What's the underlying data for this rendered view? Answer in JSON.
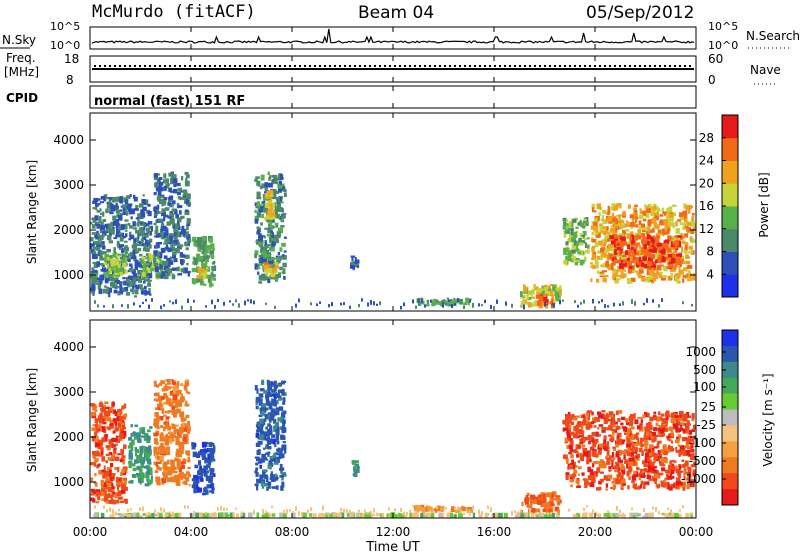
{
  "header": {
    "station": "McMurdo (fitACF)",
    "beam": "Beam 04",
    "date": "05/Sep/2012"
  },
  "noise_panel": {
    "left_label": "N.Sky",
    "left_ticks": [
      "10^5",
      "10^0"
    ],
    "right_label": "N.Search",
    "right_ticks": [
      "10^5",
      "10^0"
    ]
  },
  "freq_panel": {
    "left_label_1": "Freq.",
    "left_label_2": "[MHz]",
    "left_ticks": [
      "18",
      "8"
    ],
    "right_label": "Nave",
    "right_ticks": [
      "60",
      "0"
    ]
  },
  "cpid": {
    "label": "CPID",
    "text": "normal (fast) 151 RF"
  },
  "colors": {
    "power_scale": [
      "#1e30e8",
      "#2d4fb8",
      "#4a8a6a",
      "#58b04a",
      "#c8d33a",
      "#f0a21e",
      "#f06a1a",
      "#e61a1a"
    ],
    "velocity_scale": [
      "#1e30e8",
      "#2a55b0",
      "#3c8a8a",
      "#44a85a",
      "#66cc33",
      "#bdbdbd",
      "#f4c27a",
      "#f3a040",
      "#f07a20",
      "#f04a1a",
      "#e61a1a"
    ]
  },
  "chart_data": [
    {
      "type": "heatmap",
      "name": "power",
      "ylabel": "Slant Range [km]",
      "yticks": [
        "1000",
        "2000",
        "3000",
        "4000"
      ],
      "ylim": [
        200,
        4600
      ],
      "xlim": [
        "00:00",
        "24:00"
      ],
      "colorbar": {
        "label": "Power [dB]",
        "ticks": [
          "4",
          "8",
          "12",
          "16",
          "20",
          "24",
          "28"
        ],
        "range": [
          0,
          32
        ]
      },
      "echo_regions": [
        {
          "t0": 0.0,
          "t1": 2.5,
          "r0": 500,
          "r1": 2800,
          "v": 8
        },
        {
          "t0": 0.5,
          "t1": 1.5,
          "r0": 900,
          "r1": 1500,
          "v": 16
        },
        {
          "t0": 2.0,
          "t1": 3.0,
          "r0": 900,
          "r1": 1500,
          "v": 16
        },
        {
          "t0": 2.5,
          "t1": 4.0,
          "r0": 900,
          "r1": 3300,
          "v": 8
        },
        {
          "t0": 4.0,
          "t1": 5.0,
          "r0": 700,
          "r1": 1900,
          "v": 12
        },
        {
          "t0": 4.2,
          "t1": 4.7,
          "r0": 900,
          "r1": 1200,
          "v": 20
        },
        {
          "t0": 6.5,
          "t1": 7.8,
          "r0": 800,
          "r1": 3300,
          "v": 10
        },
        {
          "t0": 6.8,
          "t1": 7.5,
          "r0": 900,
          "r1": 1300,
          "v": 22
        },
        {
          "t0": 6.9,
          "t1": 7.4,
          "r0": 2200,
          "r1": 2900,
          "v": 20
        },
        {
          "t0": 10.3,
          "t1": 10.7,
          "r0": 1100,
          "r1": 1500,
          "v": 6
        },
        {
          "t0": 12.8,
          "t1": 15.2,
          "r0": 300,
          "r1": 500,
          "v": 12
        },
        {
          "t0": 17.0,
          "t1": 18.7,
          "r0": 250,
          "r1": 800,
          "v": 18
        },
        {
          "t0": 17.6,
          "t1": 18.4,
          "r0": 300,
          "r1": 600,
          "v": 28
        },
        {
          "t0": 18.7,
          "t1": 19.8,
          "r0": 1200,
          "r1": 2300,
          "v": 14
        },
        {
          "t0": 19.8,
          "t1": 24.0,
          "r0": 800,
          "r1": 2600,
          "v": 22
        },
        {
          "t0": 20.5,
          "t1": 23.5,
          "r0": 1100,
          "r1": 1900,
          "v": 28
        }
      ]
    },
    {
      "type": "heatmap",
      "name": "velocity",
      "ylabel": "Slant Range [km]",
      "yticks": [
        "1000",
        "2000",
        "3000",
        "4000"
      ],
      "ylim": [
        200,
        4600
      ],
      "xlim": [
        "00:00",
        "24:00"
      ],
      "xlabel": "Time UT",
      "xticks": [
        "00:00",
        "04:00",
        "08:00",
        "12:00",
        "16:00",
        "20:00",
        "00:00"
      ],
      "colorbar": {
        "label": "Velocity [m s⁻¹]",
        "ticks": [
          "1000",
          "500",
          "100",
          "25",
          "-25",
          "-100",
          "-500",
          "-1000"
        ]
      },
      "echo_regions": [
        {
          "t0": 0.0,
          "t1": 1.5,
          "r0": 500,
          "r1": 2800,
          "v": -400
        },
        {
          "t0": 1.5,
          "t1": 2.5,
          "r0": 900,
          "r1": 2300,
          "v": 300
        },
        {
          "t0": 2.5,
          "t1": 4.0,
          "r0": 900,
          "r1": 3300,
          "v": -200
        },
        {
          "t0": 4.0,
          "t1": 5.0,
          "r0": 700,
          "r1": 1900,
          "v": 900
        },
        {
          "t0": 6.5,
          "t1": 7.8,
          "r0": 800,
          "r1": 3300,
          "v": 700
        },
        {
          "t0": 10.3,
          "t1": 10.7,
          "r0": 1100,
          "r1": 1500,
          "v": 300
        },
        {
          "t0": 12.8,
          "t1": 15.2,
          "r0": 300,
          "r1": 500,
          "v": -100
        },
        {
          "t0": 17.0,
          "t1": 18.7,
          "r0": 250,
          "r1": 800,
          "v": -300
        },
        {
          "t0": 18.7,
          "t1": 24.0,
          "r0": 800,
          "r1": 2600,
          "v": -400
        },
        {
          "t0": 0.0,
          "t1": 24.0,
          "r0": 200,
          "r1": 320,
          "v": 50
        }
      ]
    }
  ]
}
